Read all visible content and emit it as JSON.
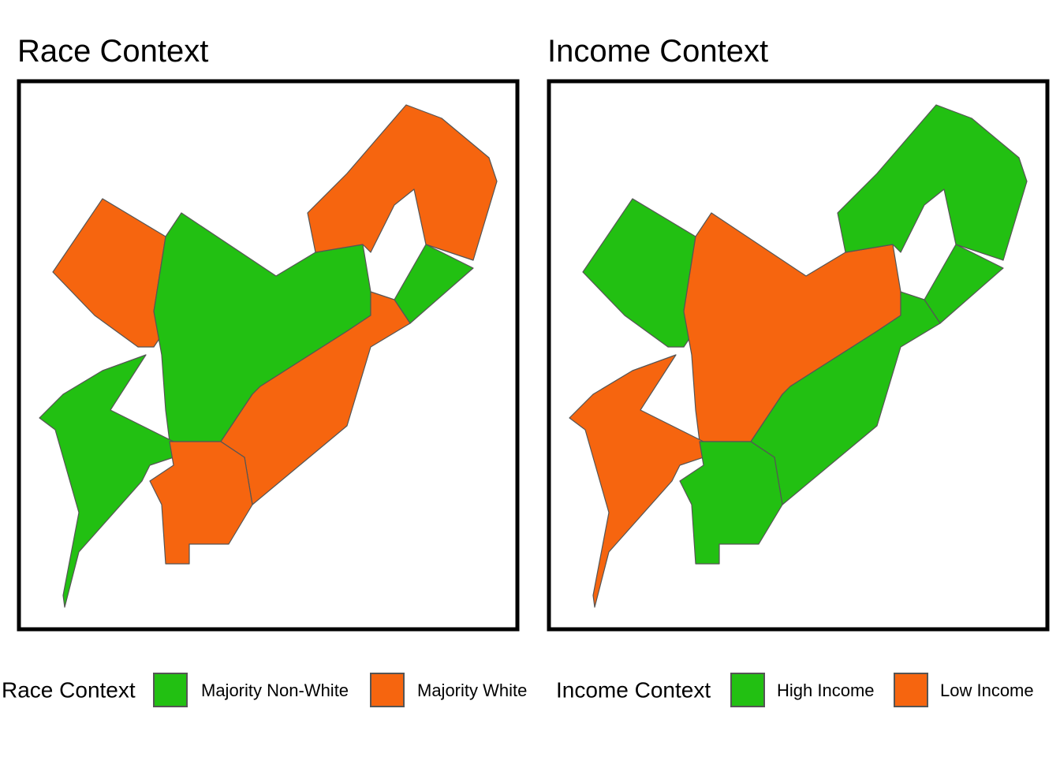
{
  "maps": [
    {
      "title": "Race Context",
      "legend": {
        "title": "Race Context",
        "items": [
          {
            "label": "Majority Non-White",
            "color": "#22c012"
          },
          {
            "label": "Majority White",
            "color": "#f6650f"
          }
        ]
      }
    },
    {
      "title": "Income Context",
      "legend": {
        "title": "Income Context",
        "items": [
          {
            "label": "High Income",
            "color": "#22c012"
          },
          {
            "label": "Low Income",
            "color": "#f6650f"
          }
        ]
      }
    }
  ]
}
